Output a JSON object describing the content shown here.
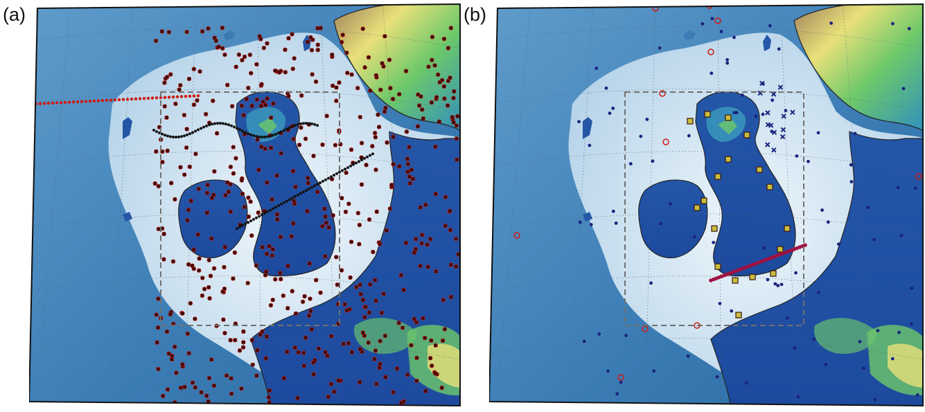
{
  "panels": [
    {
      "label": "(a)"
    },
    {
      "label": "(b)"
    }
  ],
  "colors": {
    "deep_ocean": "#2f6fa8",
    "shelf_sea": "#bcd8ea",
    "shallow_shelf": "#e8f2f8",
    "lowland": "#1f4fa5",
    "land_mid": "#3fa0c0",
    "land_green": "#6cc86a",
    "land_yellow": "#e8e07a",
    "land_brown": "#9a7c5a",
    "coastline": "#222222",
    "red_marker": "#d01a12",
    "black_marker": "#111111",
    "navy_marker": "#1a237e",
    "yellow_square": "#c8be3c",
    "box_dash": "#707070"
  },
  "legend_symbols": [
    "circle",
    "cross",
    "ring",
    "square",
    "x"
  ]
}
